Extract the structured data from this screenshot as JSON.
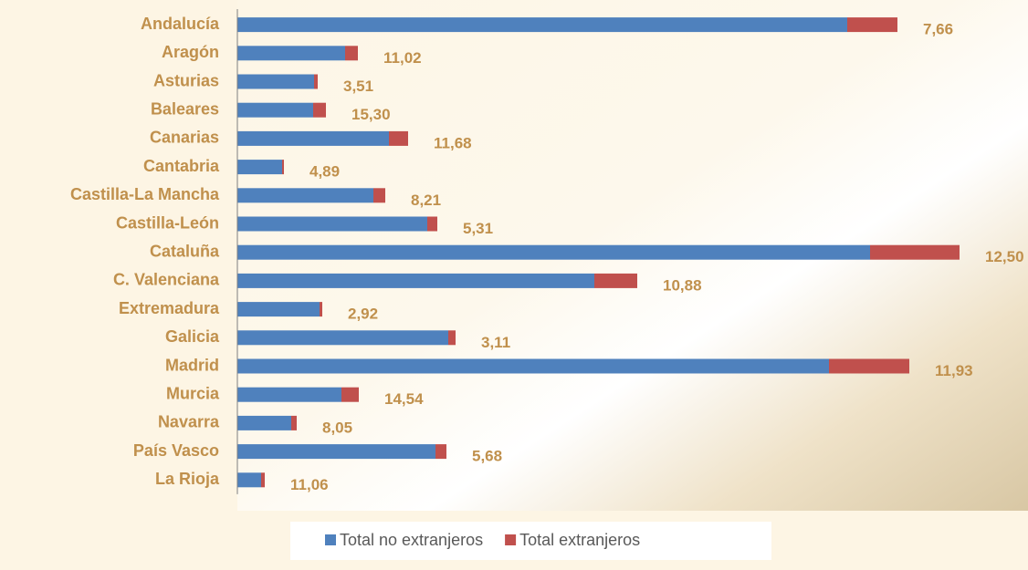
{
  "chart_data": {
    "type": "stacked-barh",
    "categories": [
      "Andalucía",
      "Aragón",
      "Asturias",
      "Baleares",
      "Canarias",
      "Cantabria",
      "Castilla-La Mancha",
      "Castilla-León",
      "Cataluña",
      "C. Valenciana",
      "Extremadura",
      "Galicia",
      "Madrid",
      "Murcia",
      "Navarra",
      "País Vasco",
      "La Rioja"
    ],
    "series": [
      {
        "name": "Total no extranjeros",
        "color": "#4f81bd",
        "values": [
          668,
          118,
          84,
          83,
          166,
          49,
          149,
          208,
          693,
          391,
          90,
          231,
          648,
          114,
          59,
          217,
          26
        ]
      },
      {
        "name": "Total extranjeros",
        "color": "#c0504d",
        "values": [
          55,
          14,
          4,
          14,
          21,
          2,
          13,
          11,
          98,
          47,
          3,
          8,
          88,
          19,
          6,
          12,
          4
        ]
      }
    ],
    "shares": {
      "values": [
        7.66,
        11.02,
        3.51,
        15.3,
        11.68,
        4.89,
        8.21,
        5.31,
        12.5,
        10.88,
        2.92,
        3.11,
        11.93,
        14.54,
        8.05,
        5.68,
        11.06
      ],
      "value_labels": [
        "7,66",
        "11,02",
        "3,51",
        "15,30",
        "11,68",
        "4,89",
        "8,21",
        "5,31",
        "12,50",
        "10,88",
        "2,92",
        "3,11",
        "11,93",
        "14,54",
        "8,05",
        "5,68",
        "11,06"
      ]
    },
    "xlim": [
      0,
      800
    ],
    "legend": "bottom"
  }
}
